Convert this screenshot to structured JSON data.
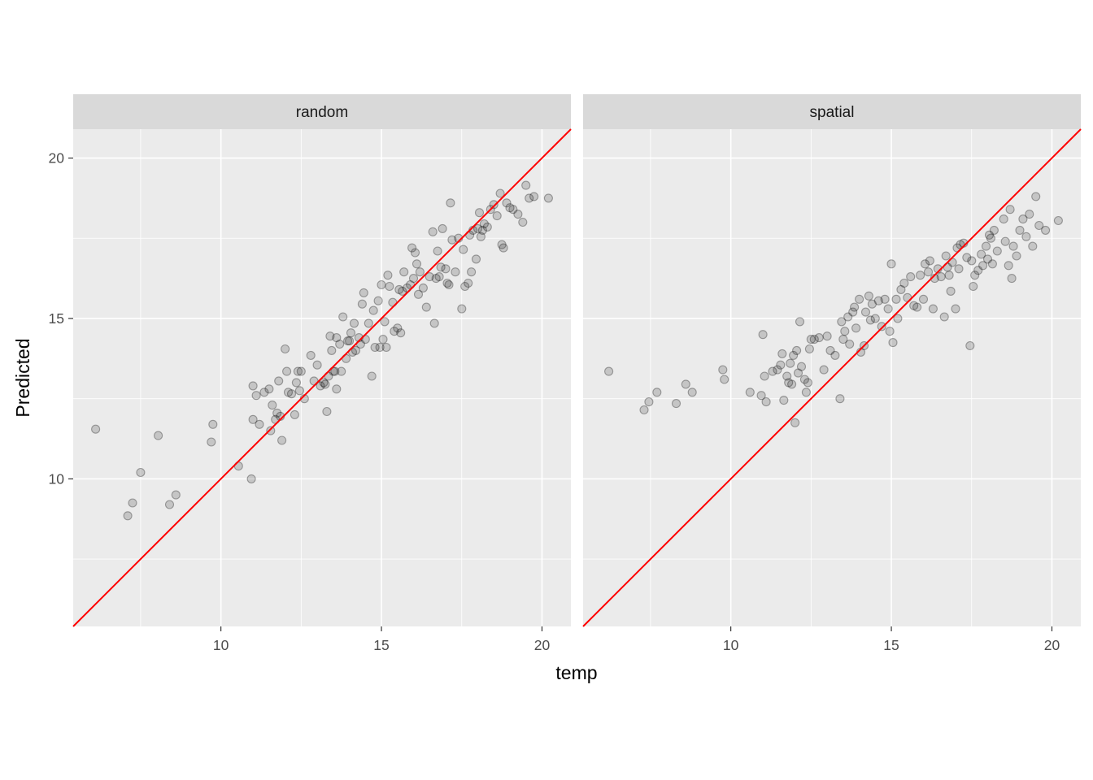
{
  "chart_data": {
    "type": "scatter",
    "xlabel": "temp",
    "ylabel": "Predicted",
    "xlim": [
      5.4,
      20.9
    ],
    "ylim": [
      5.4,
      20.9
    ],
    "x_ticks": [
      10,
      15,
      20
    ],
    "y_ticks": [
      10,
      15,
      20
    ],
    "grid": true,
    "reference_line": {
      "slope": 1,
      "intercept": 0,
      "color": "#ff0000"
    },
    "point_color": "#000000",
    "panels": [
      {
        "label": "random",
        "points": [
          [
            6.1,
            11.55
          ],
          [
            7.1,
            8.85
          ],
          [
            7.25,
            9.25
          ],
          [
            7.5,
            10.2
          ],
          [
            8.05,
            11.35
          ],
          [
            8.4,
            9.2
          ],
          [
            8.6,
            9.5
          ],
          [
            9.7,
            11.15
          ],
          [
            9.75,
            11.7
          ],
          [
            10.55,
            10.4
          ],
          [
            10.95,
            10.0
          ],
          [
            11.0,
            12.9
          ],
          [
            11.0,
            11.85
          ],
          [
            11.1,
            12.6
          ],
          [
            11.2,
            11.7
          ],
          [
            11.35,
            12.7
          ],
          [
            11.5,
            12.8
          ],
          [
            11.55,
            11.5
          ],
          [
            11.6,
            12.3
          ],
          [
            11.7,
            11.85
          ],
          [
            11.75,
            12.05
          ],
          [
            11.8,
            13.05
          ],
          [
            11.85,
            11.95
          ],
          [
            11.9,
            11.2
          ],
          [
            12.0,
            14.05
          ],
          [
            12.05,
            13.35
          ],
          [
            12.1,
            12.7
          ],
          [
            12.2,
            12.65
          ],
          [
            12.3,
            12.0
          ],
          [
            12.35,
            13.0
          ],
          [
            12.4,
            13.35
          ],
          [
            12.45,
            12.75
          ],
          [
            12.5,
            13.35
          ],
          [
            12.6,
            12.5
          ],
          [
            12.8,
            13.85
          ],
          [
            12.9,
            13.05
          ],
          [
            13.0,
            13.55
          ],
          [
            13.1,
            12.9
          ],
          [
            13.2,
            13.0
          ],
          [
            13.25,
            12.95
          ],
          [
            13.3,
            12.1
          ],
          [
            13.35,
            13.2
          ],
          [
            13.4,
            14.45
          ],
          [
            13.45,
            14.0
          ],
          [
            13.5,
            13.35
          ],
          [
            13.55,
            13.35
          ],
          [
            13.6,
            12.8
          ],
          [
            13.6,
            14.4
          ],
          [
            13.7,
            14.2
          ],
          [
            13.75,
            13.35
          ],
          [
            13.8,
            15.05
          ],
          [
            13.9,
            13.75
          ],
          [
            13.95,
            14.3
          ],
          [
            14.0,
            14.3
          ],
          [
            14.05,
            14.55
          ],
          [
            14.1,
            13.95
          ],
          [
            14.15,
            14.85
          ],
          [
            14.2,
            14.0
          ],
          [
            14.3,
            14.4
          ],
          [
            14.35,
            14.2
          ],
          [
            14.4,
            15.45
          ],
          [
            14.45,
            15.8
          ],
          [
            14.5,
            14.35
          ],
          [
            14.6,
            14.85
          ],
          [
            14.7,
            13.2
          ],
          [
            14.75,
            15.25
          ],
          [
            14.8,
            14.1
          ],
          [
            14.9,
            15.55
          ],
          [
            14.95,
            14.1
          ],
          [
            15.0,
            16.05
          ],
          [
            15.05,
            14.35
          ],
          [
            15.1,
            14.9
          ],
          [
            15.15,
            14.1
          ],
          [
            15.2,
            16.35
          ],
          [
            15.25,
            16.0
          ],
          [
            15.35,
            15.5
          ],
          [
            15.4,
            14.6
          ],
          [
            15.5,
            14.7
          ],
          [
            15.55,
            15.9
          ],
          [
            15.6,
            14.55
          ],
          [
            15.65,
            15.85
          ],
          [
            15.7,
            16.45
          ],
          [
            15.8,
            15.95
          ],
          [
            15.9,
            16.05
          ],
          [
            15.95,
            17.2
          ],
          [
            16.0,
            16.25
          ],
          [
            16.05,
            17.05
          ],
          [
            16.1,
            16.7
          ],
          [
            16.15,
            15.75
          ],
          [
            16.2,
            16.45
          ],
          [
            16.3,
            15.95
          ],
          [
            16.4,
            15.35
          ],
          [
            16.5,
            16.3
          ],
          [
            16.6,
            17.7
          ],
          [
            16.65,
            14.85
          ],
          [
            16.7,
            16.25
          ],
          [
            16.75,
            17.1
          ],
          [
            16.8,
            16.3
          ],
          [
            16.85,
            16.6
          ],
          [
            16.9,
            17.8
          ],
          [
            17.0,
            16.55
          ],
          [
            17.05,
            16.1
          ],
          [
            17.1,
            16.05
          ],
          [
            17.15,
            18.6
          ],
          [
            17.2,
            17.45
          ],
          [
            17.3,
            16.45
          ],
          [
            17.4,
            17.5
          ],
          [
            17.5,
            15.3
          ],
          [
            17.55,
            17.15
          ],
          [
            17.6,
            16.0
          ],
          [
            17.7,
            16.1
          ],
          [
            17.75,
            17.6
          ],
          [
            17.8,
            16.45
          ],
          [
            17.85,
            17.75
          ],
          [
            17.95,
            16.85
          ],
          [
            18.0,
            17.8
          ],
          [
            18.05,
            18.3
          ],
          [
            18.1,
            17.55
          ],
          [
            18.15,
            17.75
          ],
          [
            18.2,
            17.95
          ],
          [
            18.3,
            17.85
          ],
          [
            18.4,
            18.4
          ],
          [
            18.5,
            18.55
          ],
          [
            18.6,
            18.2
          ],
          [
            18.7,
            18.9
          ],
          [
            18.75,
            17.3
          ],
          [
            18.8,
            17.2
          ],
          [
            18.9,
            18.6
          ],
          [
            19.0,
            18.45
          ],
          [
            19.1,
            18.4
          ],
          [
            19.25,
            18.25
          ],
          [
            19.4,
            18.0
          ],
          [
            19.5,
            19.15
          ],
          [
            19.6,
            18.75
          ],
          [
            19.75,
            18.8
          ],
          [
            20.2,
            18.75
          ]
        ]
      },
      {
        "label": "spatial",
        "points": [
          [
            6.2,
            13.35
          ],
          [
            7.3,
            12.15
          ],
          [
            7.45,
            12.4
          ],
          [
            7.7,
            12.7
          ],
          [
            8.3,
            12.35
          ],
          [
            8.6,
            12.95
          ],
          [
            8.8,
            12.7
          ],
          [
            9.75,
            13.4
          ],
          [
            9.8,
            13.1
          ],
          [
            10.6,
            12.7
          ],
          [
            10.95,
            12.6
          ],
          [
            11.0,
            14.5
          ],
          [
            11.05,
            13.2
          ],
          [
            11.1,
            12.4
          ],
          [
            11.3,
            13.35
          ],
          [
            11.45,
            13.4
          ],
          [
            11.55,
            13.55
          ],
          [
            11.6,
            13.9
          ],
          [
            11.65,
            12.45
          ],
          [
            11.75,
            13.2
          ],
          [
            11.8,
            13.0
          ],
          [
            11.85,
            13.6
          ],
          [
            11.9,
            12.95
          ],
          [
            11.95,
            13.85
          ],
          [
            12.0,
            11.75
          ],
          [
            12.05,
            14.0
          ],
          [
            12.1,
            13.3
          ],
          [
            12.15,
            14.9
          ],
          [
            12.2,
            13.5
          ],
          [
            12.3,
            13.1
          ],
          [
            12.35,
            12.7
          ],
          [
            12.4,
            13.0
          ],
          [
            12.45,
            14.05
          ],
          [
            12.5,
            14.35
          ],
          [
            12.6,
            14.35
          ],
          [
            12.75,
            14.4
          ],
          [
            12.9,
            13.4
          ],
          [
            13.0,
            14.45
          ],
          [
            13.1,
            14.0
          ],
          [
            13.25,
            13.85
          ],
          [
            13.4,
            12.5
          ],
          [
            13.45,
            14.9
          ],
          [
            13.5,
            14.35
          ],
          [
            13.55,
            14.6
          ],
          [
            13.65,
            15.05
          ],
          [
            13.7,
            14.2
          ],
          [
            13.8,
            15.2
          ],
          [
            13.85,
            15.35
          ],
          [
            13.9,
            14.7
          ],
          [
            14.0,
            15.6
          ],
          [
            14.05,
            13.95
          ],
          [
            14.15,
            14.15
          ],
          [
            14.2,
            15.2
          ],
          [
            14.3,
            15.7
          ],
          [
            14.35,
            14.95
          ],
          [
            14.4,
            15.45
          ],
          [
            14.5,
            15.0
          ],
          [
            14.6,
            15.55
          ],
          [
            14.7,
            14.75
          ],
          [
            14.8,
            15.6
          ],
          [
            14.9,
            15.3
          ],
          [
            14.95,
            14.6
          ],
          [
            15.0,
            16.7
          ],
          [
            15.05,
            14.25
          ],
          [
            15.15,
            15.6
          ],
          [
            15.2,
            15.0
          ],
          [
            15.3,
            15.9
          ],
          [
            15.4,
            16.1
          ],
          [
            15.5,
            15.65
          ],
          [
            15.6,
            16.3
          ],
          [
            15.7,
            15.4
          ],
          [
            15.8,
            15.35
          ],
          [
            15.9,
            16.35
          ],
          [
            16.0,
            15.6
          ],
          [
            16.05,
            16.7
          ],
          [
            16.15,
            16.45
          ],
          [
            16.2,
            16.8
          ],
          [
            16.3,
            15.3
          ],
          [
            16.35,
            16.25
          ],
          [
            16.45,
            16.55
          ],
          [
            16.55,
            16.3
          ],
          [
            16.65,
            15.05
          ],
          [
            16.7,
            16.95
          ],
          [
            16.75,
            16.6
          ],
          [
            16.8,
            16.35
          ],
          [
            16.85,
            15.85
          ],
          [
            16.9,
            16.75
          ],
          [
            17.0,
            15.3
          ],
          [
            17.05,
            17.2
          ],
          [
            17.1,
            16.55
          ],
          [
            17.15,
            17.3
          ],
          [
            17.25,
            17.35
          ],
          [
            17.35,
            16.9
          ],
          [
            17.45,
            14.15
          ],
          [
            17.5,
            16.8
          ],
          [
            17.55,
            16.0
          ],
          [
            17.6,
            16.35
          ],
          [
            17.7,
            16.5
          ],
          [
            17.8,
            17.0
          ],
          [
            17.85,
            16.65
          ],
          [
            17.95,
            17.25
          ],
          [
            18.0,
            16.85
          ],
          [
            18.05,
            17.6
          ],
          [
            18.1,
            17.5
          ],
          [
            18.15,
            16.7
          ],
          [
            18.2,
            17.75
          ],
          [
            18.3,
            17.1
          ],
          [
            18.5,
            18.1
          ],
          [
            18.55,
            17.4
          ],
          [
            18.65,
            16.65
          ],
          [
            18.7,
            18.4
          ],
          [
            18.75,
            16.25
          ],
          [
            18.8,
            17.25
          ],
          [
            18.9,
            16.95
          ],
          [
            19.0,
            17.75
          ],
          [
            19.1,
            18.1
          ],
          [
            19.2,
            17.55
          ],
          [
            19.3,
            18.25
          ],
          [
            19.4,
            17.25
          ],
          [
            19.5,
            18.8
          ],
          [
            19.6,
            17.9
          ],
          [
            19.8,
            17.75
          ],
          [
            20.2,
            18.05
          ]
        ]
      }
    ]
  }
}
